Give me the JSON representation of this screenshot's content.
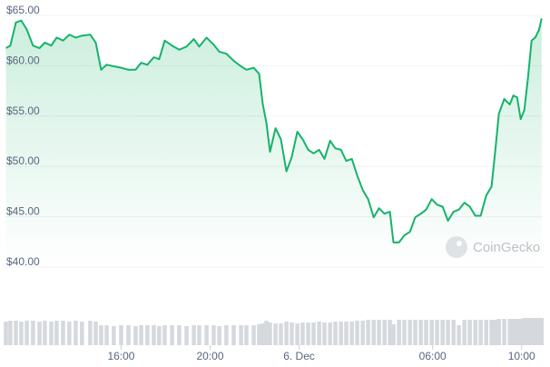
{
  "chart_data": {
    "type": "line",
    "watermark": "CoinGecko",
    "color": "#16b36a",
    "grid": true,
    "ylim": [
      40,
      65
    ],
    "yticks": [
      {
        "value": 40,
        "label": "$40.00"
      },
      {
        "value": 45,
        "label": "$45.00"
      },
      {
        "value": 50,
        "label": "$50.00"
      },
      {
        "value": 55,
        "label": "$55.00"
      },
      {
        "value": 60,
        "label": "$60.00"
      },
      {
        "value": 65,
        "label": "$65.00"
      }
    ],
    "xlim": [
      10.8,
      34.95
    ],
    "xticks": [
      {
        "value": 16,
        "label": "16:00"
      },
      {
        "value": 20,
        "label": "20:00"
      },
      {
        "value": 24,
        "label": "6. Dec"
      },
      {
        "value": 30,
        "label": "06:00"
      },
      {
        "value": 34,
        "label": "10:00"
      }
    ],
    "x": [
      10.82,
      11.02,
      11.27,
      11.51,
      11.76,
      12.04,
      12.33,
      12.57,
      12.86,
      13.1,
      13.39,
      13.67,
      13.96,
      14.24,
      14.61,
      14.86,
      15.1,
      15.35,
      15.67,
      16.0,
      16.33,
      16.65,
      16.9,
      17.18,
      17.47,
      17.71,
      17.96,
      18.29,
      18.61,
      18.94,
      19.27,
      19.51,
      19.84,
      20.16,
      20.41,
      20.73,
      21.06,
      21.39,
      21.63,
      21.96,
      22.2,
      22.37,
      22.53,
      22.69,
      22.94,
      23.18,
      23.43,
      23.67,
      23.92,
      24.16,
      24.41,
      24.65,
      24.9,
      25.14,
      25.39,
      25.63,
      25.88,
      26.12,
      26.37,
      26.61,
      26.86,
      27.1,
      27.35,
      27.59,
      27.84,
      28.08,
      28.24,
      28.49,
      28.73,
      28.98,
      29.22,
      29.47,
      29.71,
      29.96,
      30.2,
      30.45,
      30.69,
      30.94,
      31.18,
      31.43,
      31.67,
      31.92,
      32.16,
      32.41,
      32.65,
      32.82,
      32.98,
      33.22,
      33.47,
      33.63,
      33.8,
      33.96,
      34.12,
      34.29,
      34.45,
      34.61,
      34.78,
      34.9
    ],
    "values": [
      61.75,
      62.0,
      64.3,
      64.5,
      63.6,
      62.0,
      61.75,
      62.3,
      62.0,
      62.8,
      62.5,
      63.1,
      62.8,
      63.0,
      63.1,
      62.3,
      59.6,
      60.1,
      59.95,
      59.8,
      59.6,
      59.6,
      60.3,
      60.1,
      60.85,
      60.65,
      62.5,
      62.0,
      61.6,
      61.9,
      62.65,
      61.9,
      62.8,
      62.1,
      61.4,
      61.2,
      60.5,
      59.95,
      59.6,
      59.8,
      59.2,
      56.15,
      54.35,
      51.45,
      53.8,
      52.7,
      49.5,
      50.95,
      53.45,
      52.7,
      51.65,
      51.3,
      51.65,
      50.75,
      52.55,
      51.8,
      51.65,
      50.55,
      50.75,
      49.1,
      47.65,
      46.75,
      44.95,
      45.85,
      45.3,
      45.5,
      42.45,
      42.45,
      43.15,
      43.5,
      44.95,
      45.3,
      45.7,
      46.75,
      46.2,
      46.0,
      44.6,
      45.5,
      45.7,
      46.4,
      46.0,
      45.1,
      45.1,
      47.1,
      48.0,
      51.65,
      55.25,
      56.7,
      56.15,
      57.05,
      56.85,
      54.7,
      55.6,
      58.85,
      62.5,
      62.8,
      63.55,
      64.7
    ],
    "volume_color": "#d5d9de",
    "volume_lim": [
      0,
      30
    ],
    "volume": [
      26,
      27,
      27,
      26,
      27,
      27,
      26,
      27,
      26,
      27,
      27,
      26,
      27,
      26,
      27,
      26,
      22,
      22,
      21,
      22,
      22,
      21,
      22,
      22,
      22,
      21,
      22,
      22,
      22,
      21,
      22,
      22,
      22,
      22,
      21,
      22,
      22,
      22,
      22,
      22,
      23,
      24,
      27,
      25,
      24,
      24,
      26,
      25,
      24,
      25,
      25,
      25,
      26,
      25,
      25,
      26,
      26,
      26,
      26,
      27,
      27,
      28,
      28,
      28,
      28,
      28,
      23,
      28,
      28,
      28,
      28,
      28,
      28,
      28,
      28,
      28,
      28,
      28,
      22,
      28,
      28,
      28,
      28,
      28,
      28,
      28,
      29,
      29,
      29,
      29,
      29,
      29,
      30,
      30,
      30,
      30,
      30,
      30
    ]
  }
}
